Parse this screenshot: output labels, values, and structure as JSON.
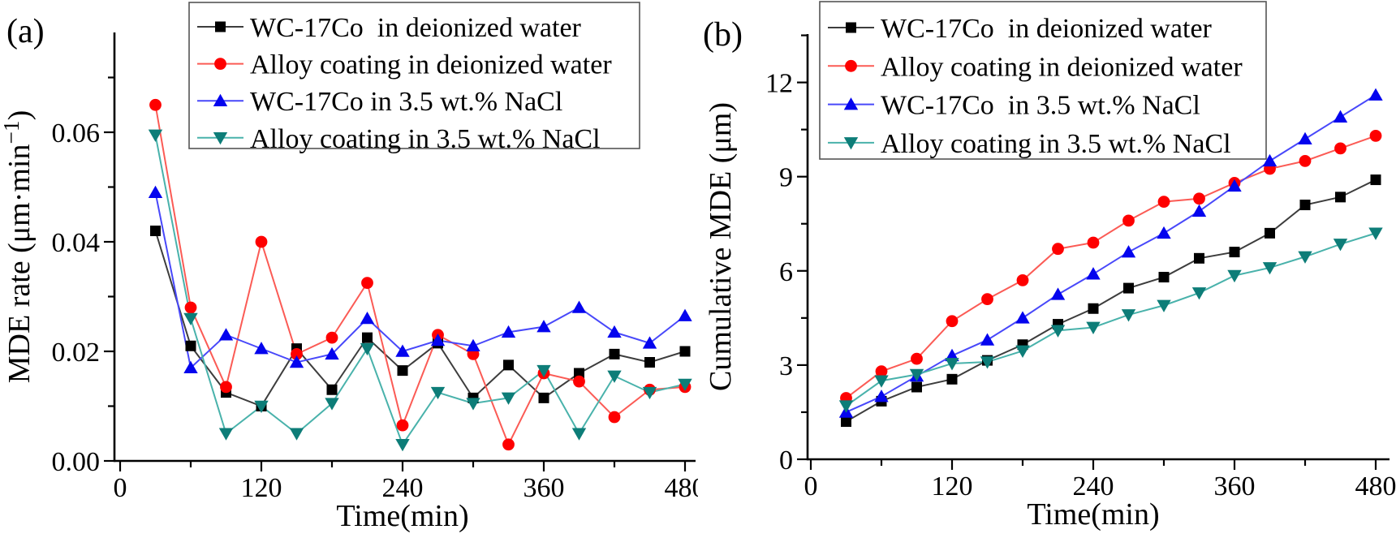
{
  "figure": {
    "background": "#ffffff",
    "panel_tags": [
      "(a)",
      "(b)"
    ]
  },
  "chart_data": [
    {
      "type": "line",
      "tag": "(a)",
      "xlabel": "Time(min)",
      "ylabel": "MDE rate (μm·min⁻¹)",
      "ylabel_main": "MDE rate (μm·min",
      "ylabel_sup": "−1",
      "ylabel_close": ")",
      "xlim": [
        0,
        490
      ],
      "ylim": [
        0,
        0.078
      ],
      "grid": false,
      "legend_position": "top",
      "x": [
        30,
        60,
        90,
        120,
        150,
        180,
        210,
        240,
        270,
        300,
        330,
        360,
        390,
        420,
        450,
        480
      ],
      "xticks": [
        {
          "v": 0,
          "label": "0"
        },
        {
          "v": 120,
          "label": "120"
        },
        {
          "v": 240,
          "label": "240"
        },
        {
          "v": 360,
          "label": "360"
        },
        {
          "v": 480,
          "label": "480"
        }
      ],
      "xticks_minor": [
        60,
        180,
        300,
        420
      ],
      "yticks": [
        {
          "v": 0,
          "label": "0.00"
        },
        {
          "v": 0.02,
          "label": "0.02"
        },
        {
          "v": 0.04,
          "label": "0.04"
        },
        {
          "v": 0.06,
          "label": "0.06"
        }
      ],
      "yticks_minor": [
        0.01,
        0.03,
        0.05,
        0.07
      ],
      "series": [
        {
          "name": "WC-17Co  in deionized water",
          "marker": "square",
          "color": "#000000",
          "line_color": "#3d3d3d",
          "values": [
            0.042,
            0.021,
            0.0125,
            0.01,
            0.0205,
            0.013,
            0.0225,
            0.0165,
            0.0215,
            0.0115,
            0.0175,
            0.0115,
            0.016,
            0.0195,
            0.018,
            0.02
          ]
        },
        {
          "name": "Alloy coating in deionized water",
          "marker": "circle",
          "color": "#fe0000",
          "line_color": "#fb5b55",
          "values": [
            0.065,
            0.028,
            0.0135,
            0.04,
            0.0195,
            0.0225,
            0.0325,
            0.0065,
            0.023,
            0.0195,
            0.003,
            0.016,
            0.0145,
            0.008,
            0.013,
            0.0135
          ]
        },
        {
          "name": "WC-17Co in 3.5 wt.% NaCl",
          "marker": "triangle-up",
          "color": "#0404ee",
          "line_color": "#4848fa",
          "values": [
            0.049,
            0.017,
            0.023,
            0.0205,
            0.018,
            0.0195,
            0.026,
            0.02,
            0.022,
            0.021,
            0.0235,
            0.0245,
            0.028,
            0.0235,
            0.0215,
            0.0265
          ]
        },
        {
          "name": "Alloy coating in 3.5 wt.% NaCl",
          "marker": "triangle-down",
          "color": "#0d7d78",
          "line_color": "#49b2ab",
          "values": [
            0.0595,
            0.026,
            0.005,
            0.01,
            0.005,
            0.0105,
            0.0205,
            0.003,
            0.0125,
            0.0105,
            0.0115,
            0.0165,
            0.005,
            0.0155,
            0.0125,
            0.014
          ]
        }
      ]
    },
    {
      "type": "line",
      "tag": "(b)",
      "xlabel": "Time(min)",
      "ylabel": "Cumulative MDE (μm)",
      "xlim": [
        0,
        490
      ],
      "ylim": [
        0,
        13.5
      ],
      "grid": false,
      "legend_position": "top",
      "x": [
        30,
        60,
        90,
        120,
        150,
        180,
        210,
        240,
        270,
        300,
        330,
        360,
        390,
        420,
        450,
        480
      ],
      "xticks": [
        {
          "v": 0,
          "label": "0"
        },
        {
          "v": 120,
          "label": "120"
        },
        {
          "v": 240,
          "label": "240"
        },
        {
          "v": 360,
          "label": "360"
        },
        {
          "v": 480,
          "label": "480"
        }
      ],
      "xticks_minor": [
        60,
        180,
        300,
        420
      ],
      "yticks": [
        {
          "v": 0,
          "label": "0"
        },
        {
          "v": 3,
          "label": "3"
        },
        {
          "v": 6,
          "label": "6"
        },
        {
          "v": 9,
          "label": "9"
        },
        {
          "v": 12,
          "label": "12"
        }
      ],
      "yticks_minor": [
        1.5,
        4.5,
        7.5,
        10.5,
        13.5
      ],
      "series": [
        {
          "name": "WC-17Co  in deionized water",
          "marker": "square",
          "color": "#000000",
          "line_color": "#3d3d3d",
          "values": [
            1.2,
            1.85,
            2.3,
            2.55,
            3.15,
            3.65,
            4.3,
            4.8,
            5.45,
            5.8,
            6.4,
            6.6,
            7.2,
            8.1,
            8.35,
            8.9
          ]
        },
        {
          "name": "Alloy coating in deionized water",
          "marker": "circle",
          "color": "#fe0000",
          "line_color": "#fb5b55",
          "values": [
            1.95,
            2.8,
            3.2,
            4.4,
            5.1,
            5.7,
            6.7,
            6.9,
            7.6,
            8.2,
            8.3,
            8.8,
            9.25,
            9.5,
            9.9,
            10.3
          ]
        },
        {
          "name": "WC-17Co  in 3.5 wt.% NaCl",
          "marker": "triangle-up",
          "color": "#0404ee",
          "line_color": "#4848fa",
          "values": [
            1.5,
            2.0,
            2.65,
            3.3,
            3.8,
            4.5,
            5.25,
            5.9,
            6.6,
            7.2,
            7.9,
            8.7,
            9.5,
            10.2,
            10.9,
            11.6
          ]
        },
        {
          "name": "Alloy coating in 3.5 wt.% NaCl",
          "marker": "triangle-down",
          "color": "#0d7d78",
          "line_color": "#49b2ab",
          "values": [
            1.7,
            2.5,
            2.7,
            3.05,
            3.1,
            3.45,
            4.1,
            4.2,
            4.6,
            4.9,
            5.3,
            5.85,
            6.1,
            6.45,
            6.85,
            7.2
          ]
        }
      ]
    }
  ]
}
